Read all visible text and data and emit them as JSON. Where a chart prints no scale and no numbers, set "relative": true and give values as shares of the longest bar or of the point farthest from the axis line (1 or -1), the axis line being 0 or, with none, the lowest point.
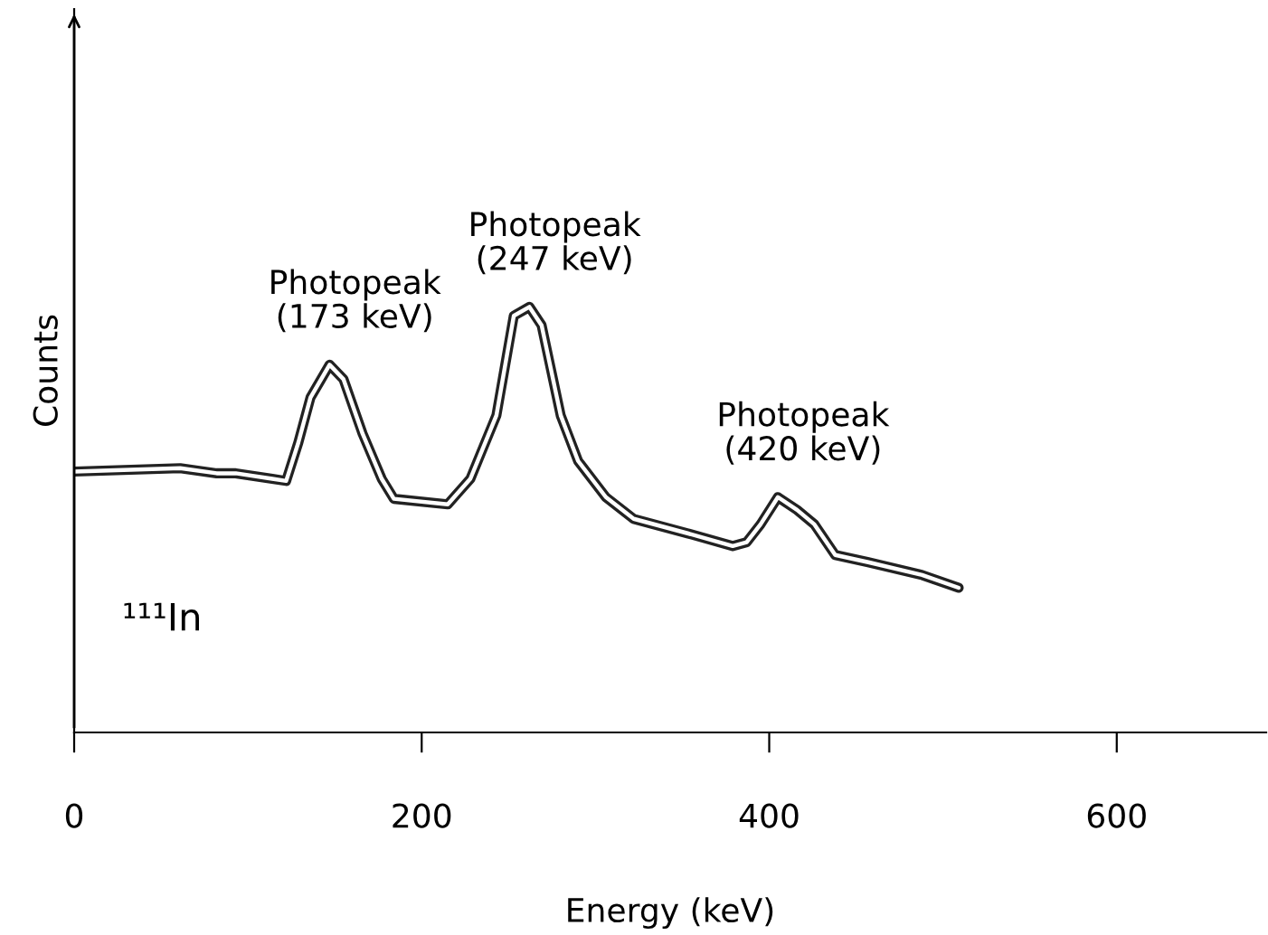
{
  "chart_data": {
    "type": "line",
    "relative": true,
    "xlabel": "Energy (keV)",
    "ylabel": "Counts",
    "xlim": [
      0,
      686
    ],
    "xticks": [
      0,
      200,
      400,
      600
    ],
    "grid": false,
    "legend": false,
    "marker": "none",
    "line_style": "solid",
    "x": [
      0,
      61,
      82,
      93,
      114,
      122,
      129,
      136,
      147,
      155,
      166,
      177,
      184,
      215,
      228,
      243,
      253,
      262,
      269,
      280,
      290,
      306,
      322,
      353,
      379,
      387,
      395,
      405,
      416,
      426,
      438,
      457,
      488,
      509
    ],
    "series": [
      {
        "color": "#222222",
        "values": [
          0.613,
          0.621,
          0.609,
          0.609,
          0.596,
          0.591,
          0.681,
          0.787,
          0.864,
          0.83,
          0.702,
          0.596,
          0.549,
          0.536,
          0.596,
          0.745,
          0.979,
          1,
          0.957,
          0.745,
          0.638,
          0.553,
          0.502,
          0.468,
          0.438,
          0.447,
          0.489,
          0.553,
          0.523,
          0.489,
          0.417,
          0.4,
          0.37,
          0.34
        ]
      }
    ],
    "annotations": [
      {
        "text": "Photopeak\n(173 keV)",
        "x": 147,
        "y": 0.864
      },
      {
        "text": "Photopeak\n(247 keV)",
        "x": 262,
        "y": 1
      },
      {
        "text": "Photopeak\n(420 keV)",
        "x": 405,
        "y": 0.553
      },
      "¹¹¹In"
    ]
  }
}
